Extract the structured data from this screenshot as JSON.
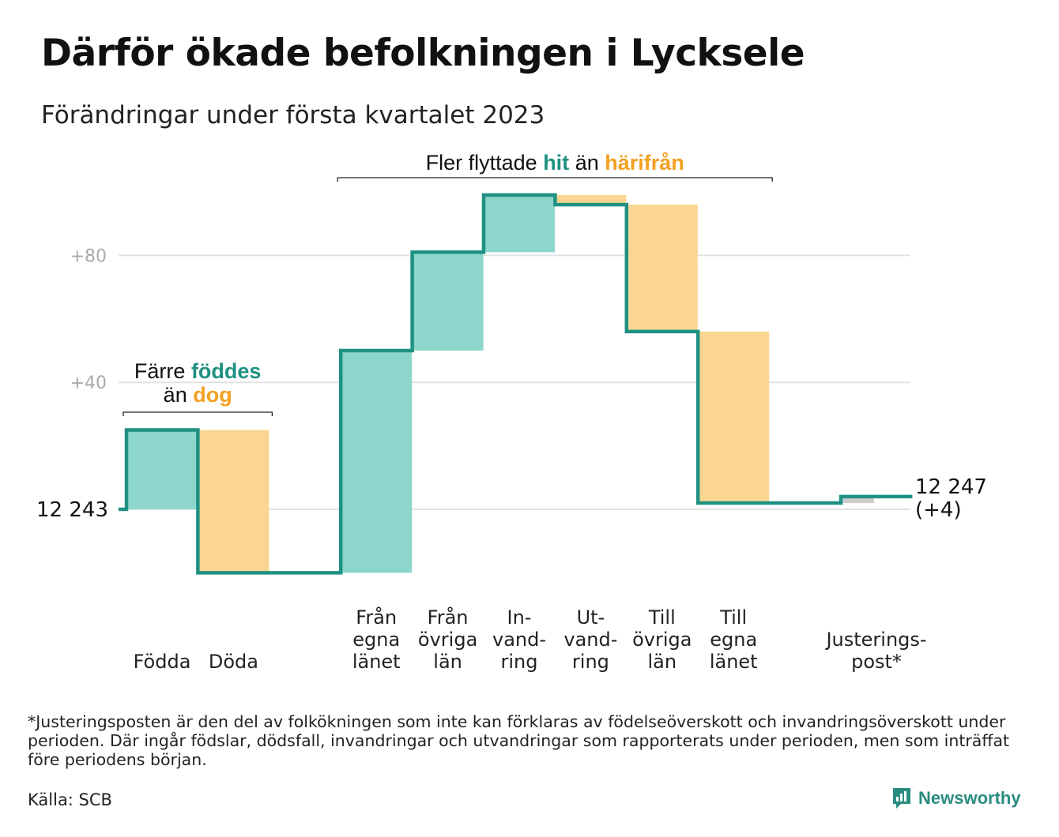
{
  "header": {
    "title": "Därför ökade befolkningen i Lycksele",
    "subtitle": "Förändringar under första kvartalet 2023"
  },
  "footer": {
    "footnote": "*Justeringsposten är den del av folkökningen som inte kan förklaras av födelseöverskott och invandringsöverskott under perioden. Där ingår födslar, dödsfall, invandringar och utvandringar som rapporterats under perioden, men som inträffat före periodens början.",
    "source": "Källa: SCB",
    "brand": "Newsworthy"
  },
  "colors": {
    "increase": "#8dd6cb",
    "decrease": "#fbd692",
    "adjustment": "#cccccc",
    "line": "#1f9183",
    "grid": "#e2e2e2",
    "highlight_in": "#1f9183",
    "highlight_out": "#f2a122"
  },
  "chart_data": {
    "type": "waterfall",
    "start_value": 12243,
    "start_label": "12 243",
    "end_value": 12247,
    "end_label": "12 247",
    "end_change_label": "(+4)",
    "y_ticks": [
      {
        "value": 40,
        "label": "+40"
      },
      {
        "value": 80,
        "label": "+80"
      }
    ],
    "ylim": [
      -22,
      100
    ],
    "steps": [
      {
        "label": [
          "Födda"
        ],
        "delta": 25,
        "kind": "increase"
      },
      {
        "label": [
          "Döda"
        ],
        "delta": -45,
        "kind": "decrease"
      },
      {
        "label": [],
        "delta": 0,
        "kind": "gap"
      },
      {
        "label": [
          "Från",
          "egna",
          "länet"
        ],
        "delta": 70,
        "kind": "increase"
      },
      {
        "label": [
          "Från",
          "övriga",
          "län"
        ],
        "delta": 31,
        "kind": "increase"
      },
      {
        "label": [
          "In-",
          "vand-",
          "ring"
        ],
        "delta": 18,
        "kind": "increase"
      },
      {
        "label": [
          "Ut-",
          "vand-",
          "ring"
        ],
        "delta": -3,
        "kind": "decrease"
      },
      {
        "label": [
          "Till",
          "övriga",
          "län"
        ],
        "delta": -40,
        "kind": "decrease"
      },
      {
        "label": [
          "Till",
          "egna",
          "länet"
        ],
        "delta": -54,
        "kind": "decrease"
      },
      {
        "label": [],
        "delta": 0,
        "kind": "gap"
      },
      {
        "label": [
          "Justerings-",
          "post*"
        ],
        "delta": 2,
        "kind": "adjustment"
      }
    ],
    "annotations": [
      {
        "parts": [
          [
            "Färre ",
            "plain"
          ],
          [
            "föddes",
            "in"
          ]
        ],
        "line2": [
          [
            "än ",
            "plain"
          ],
          [
            "dog",
            "out"
          ]
        ],
        "span": [
          0,
          1
        ]
      },
      {
        "parts": [
          [
            "Fler flyttade ",
            "plain"
          ],
          [
            "hit",
            "in"
          ],
          [
            " än ",
            "plain"
          ],
          [
            "härifrån",
            "out"
          ]
        ],
        "span": [
          3,
          8
        ]
      }
    ]
  }
}
